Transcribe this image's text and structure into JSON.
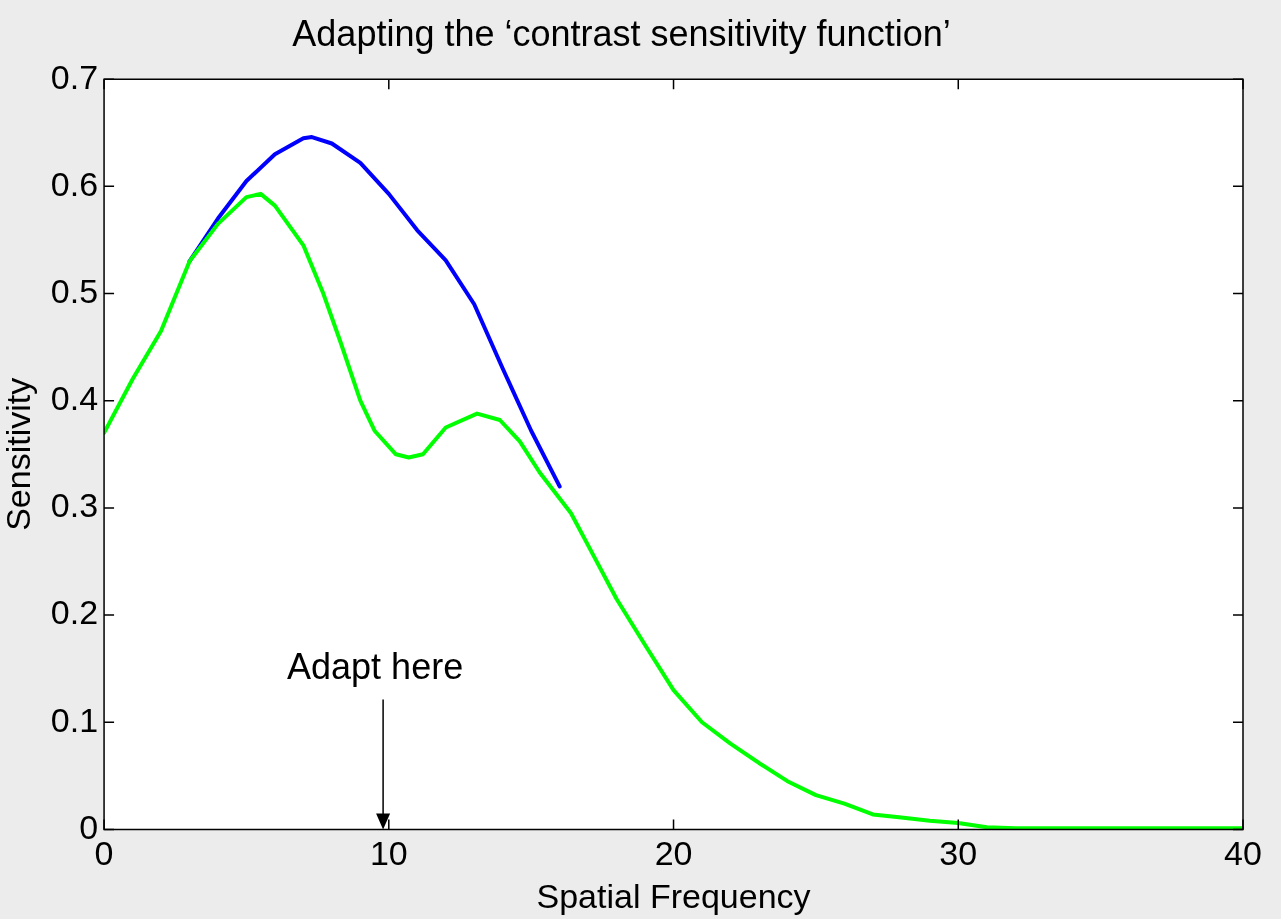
{
  "chart_data": {
    "type": "line",
    "title": "Adapting the ‘contrast sensitivity function’",
    "xlabel": "Spatial Frequency",
    "ylabel": "Sensitivity",
    "xlim": [
      0,
      40
    ],
    "xticks": [
      0,
      10,
      20,
      30,
      40
    ],
    "ylim": [
      0,
      0.7
    ],
    "yticks": [
      0,
      0.1,
      0.2,
      0.3,
      0.4,
      0.5,
      0.6,
      0.7
    ],
    "grid": false,
    "legend": false,
    "marker": "none",
    "line_style": "solid",
    "annotations": [
      "Adapt here"
    ],
    "series": [
      {
        "color": "#0000ff",
        "x": [
          3,
          4,
          5,
          6,
          7,
          7.3,
          8,
          9,
          10,
          11,
          12,
          13,
          14,
          15,
          16
        ],
        "values": [
          0.53,
          0.57,
          0.605,
          0.63,
          0.645,
          0.646,
          0.64,
          0.622,
          0.593,
          0.559,
          0.531,
          0.49,
          0.43,
          0.372,
          0.32
        ]
      },
      {
        "color": "#00ff00",
        "x": [
          0,
          1,
          2,
          3,
          4,
          5,
          5.5,
          6,
          7,
          7.7,
          8.3,
          9,
          9.5,
          10.25,
          10.7,
          11.2,
          12,
          13.1,
          13.9,
          14.6,
          15.3,
          16.4,
          17,
          18,
          19,
          20,
          21,
          22,
          23,
          24,
          25,
          26,
          27,
          28,
          29,
          30,
          31,
          32,
          40
        ],
        "values": [
          0.37,
          0.42,
          0.465,
          0.53,
          0.565,
          0.59,
          0.593,
          0.582,
          0.545,
          0.5,
          0.455,
          0.4,
          0.372,
          0.35,
          0.347,
          0.35,
          0.375,
          0.388,
          0.382,
          0.362,
          0.333,
          0.295,
          0.265,
          0.215,
          0.172,
          0.13,
          0.1,
          0.08,
          0.062,
          0.045,
          0.032,
          0.024,
          0.014,
          0.011,
          0.008,
          0.006,
          0.002,
          0.001,
          0.001
        ]
      }
    ]
  }
}
